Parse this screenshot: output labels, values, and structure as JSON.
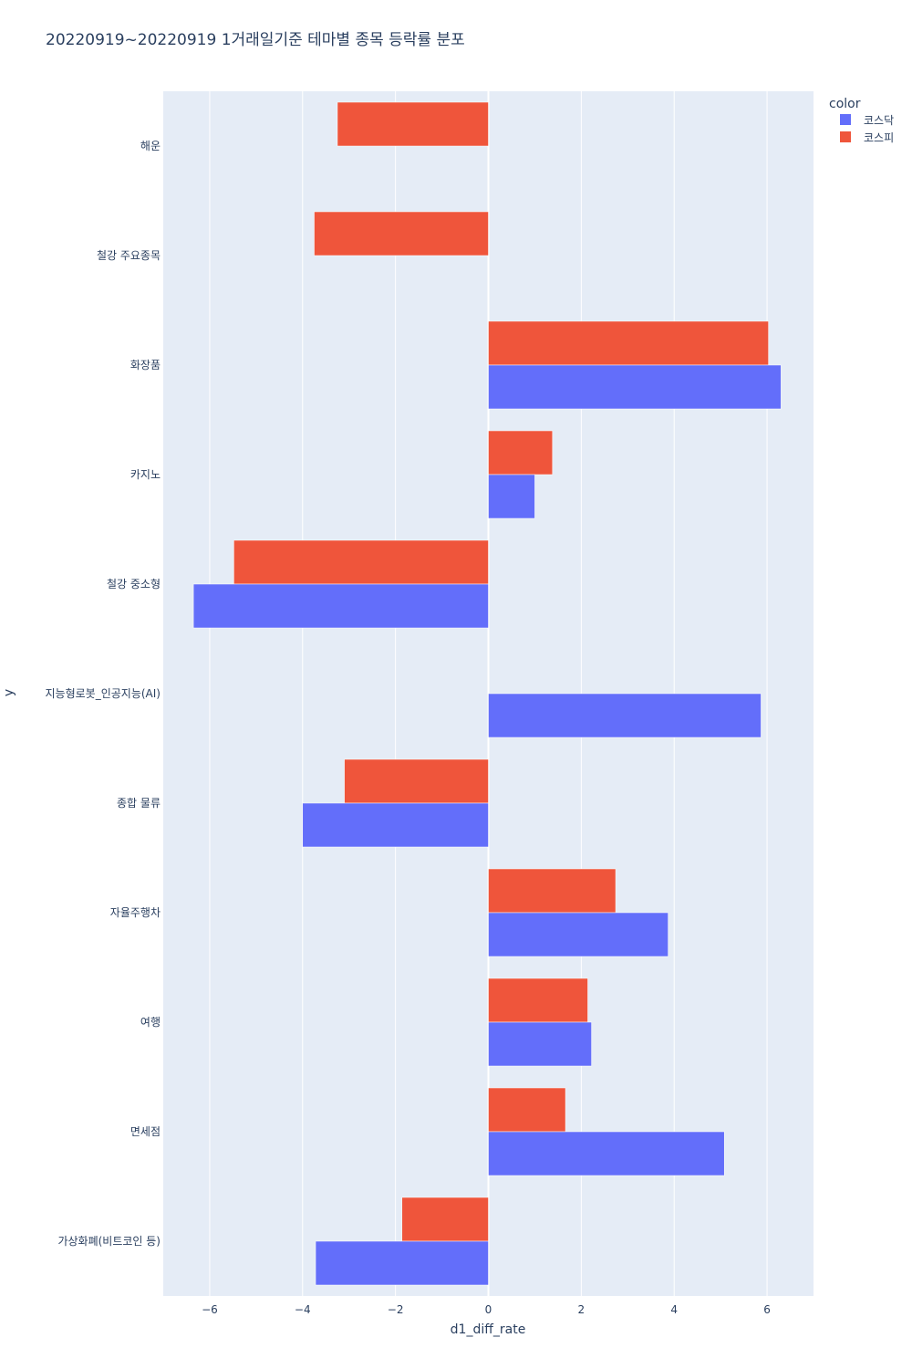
{
  "chart_data": {
    "type": "bar",
    "orientation": "horizontal",
    "title": "20220919~20220919 1거래일기준 테마별 종목 등락률 분포",
    "xlabel": "d1_diff_rate",
    "ylabel": "y",
    "xlim": [
      -7,
      7
    ],
    "xticks": [
      -6,
      -4,
      -2,
      0,
      2,
      4,
      6
    ],
    "xtick_labels": [
      "−6",
      "−4",
      "−2",
      "0",
      "2",
      "4",
      "6"
    ],
    "grid": true,
    "legend_title": "color",
    "legend_position": "top-right",
    "categories": [
      "해운",
      "철강 주요종목",
      "화장품",
      "카지노",
      "철강 중소형",
      "지능형로봇_인공지능(AI)",
      "종합 물류",
      "자율주행차",
      "여행",
      "면세점",
      "가상화폐(비트코인 등)"
    ],
    "series": [
      {
        "name": "코스닥",
        "color": "#636efa",
        "values": [
          null,
          null,
          6.3,
          1.0,
          -6.35,
          5.87,
          -4.0,
          3.87,
          2.22,
          5.08,
          -3.72
        ]
      },
      {
        "name": "코스피",
        "color": "#ef553b",
        "values": [
          -3.25,
          -3.75,
          6.03,
          1.38,
          -5.48,
          null,
          -3.1,
          2.74,
          2.14,
          1.66,
          -1.86
        ]
      }
    ]
  },
  "colors": {
    "plot_background": "#e5ecf6",
    "grid": "#ffffff",
    "text": "#2a3f5f"
  }
}
